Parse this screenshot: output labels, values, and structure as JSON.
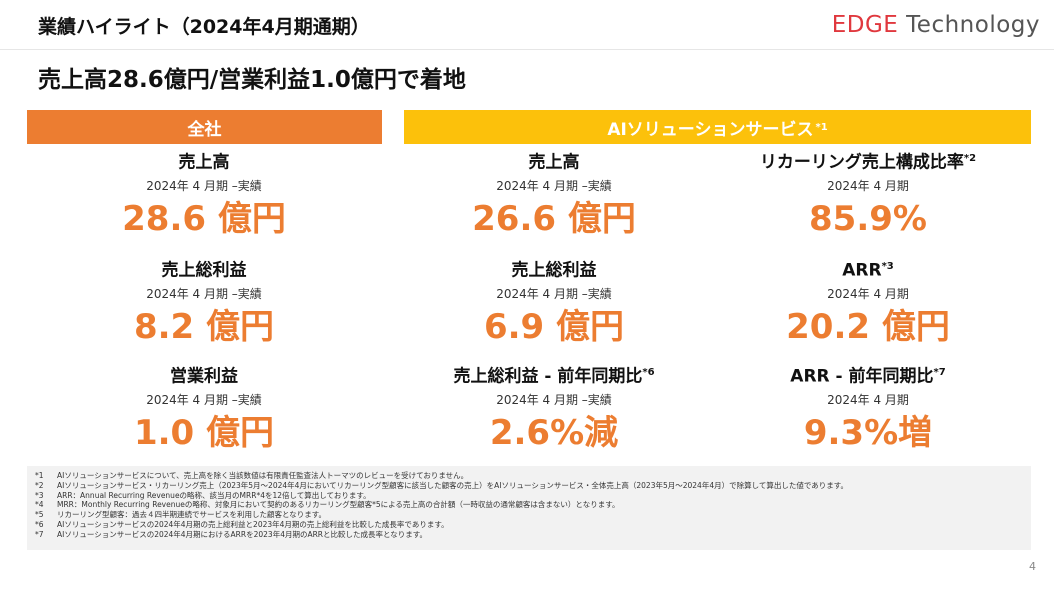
{
  "header": {
    "title": "業績ハイライト（2024年4月期通期）",
    "logo_edge": "EDGE",
    "logo_tech": " Technology"
  },
  "headline": "売上高28.6億円/営業利益1.0億円で着地",
  "sections": {
    "zensha": "全社",
    "ai": "AIソリューションサービス",
    "ai_sup": "*1"
  },
  "zensha": [
    {
      "label": "売上高",
      "sup": "",
      "period": "2024年 4 月期 –実績",
      "value": "28.6 億円"
    },
    {
      "label": "売上総利益",
      "sup": "",
      "period": "2024年 4 月期 –実績",
      "value": "8.2 億円"
    },
    {
      "label": "営業利益",
      "sup": "",
      "period": "2024年 4 月期 –実績",
      "value": "1.0 億円"
    }
  ],
  "ai_left": [
    {
      "label": "売上高",
      "sup": "",
      "period": "2024年 4 月期 –実績",
      "value": "26.6 億円"
    },
    {
      "label": "売上総利益",
      "sup": "",
      "period": "2024年 4 月期 –実績",
      "value": "6.9 億円"
    },
    {
      "label": "売上総利益 - 前年同期比",
      "sup": "*6",
      "period": "2024年 4 月期 –実績",
      "value": "2.6%減"
    }
  ],
  "ai_right": [
    {
      "label": "リカーリング売上構成比率",
      "sup": "*2",
      "period": "2024年 4 月期",
      "value": "85.9%"
    },
    {
      "label": "ARR",
      "sup": "*3",
      "period": "2024年 4 月期",
      "value": "20.2 億円"
    },
    {
      "label": "ARR - 前年同期比",
      "sup": "*7",
      "period": "2024年 4 月期",
      "value": "9.3%増"
    }
  ],
  "footnotes": [
    {
      "num": "*1",
      "text": "AIソリューションサービスについて、売上高を除く当該数値は有限責任監査法人トーマツのレビューを受けておりません。"
    },
    {
      "num": "*2",
      "text": "AIソリューションサービス・リカーリング売上（2023年5月～2024年4月においてリカーリング型顧客に該当した顧客の売上）をAIソリューションサービス・全体売上高（2023年5月～2024年4月）で除算して算出した値であります。"
    },
    {
      "num": "*3",
      "text": "ARR：Annual Recurring Revenueの略称、該当月のMRR*4を12倍して算出しております。"
    },
    {
      "num": "*4",
      "text": "MRR：Monthly Recurring Revenueの略称、対象月において契約のあるリカーリング型顧客*5による売上高の合計額（一時収益の通常顧客は含まない）となります。"
    },
    {
      "num": "*5",
      "text": "リカーリング型顧客：過去４四半期連続でサービスを利用した顧客となります。"
    },
    {
      "num": "*6",
      "text": "AIソリューションサービスの2024年4月期の売上総利益と2023年4月期の売上総利益を比較した成長率であります。"
    },
    {
      "num": "*7",
      "text": "AIソリューションサービスの2024年4月期におけるARRを2023年4月期のARRと比較した成長率となります。"
    }
  ],
  "page_number": "4"
}
